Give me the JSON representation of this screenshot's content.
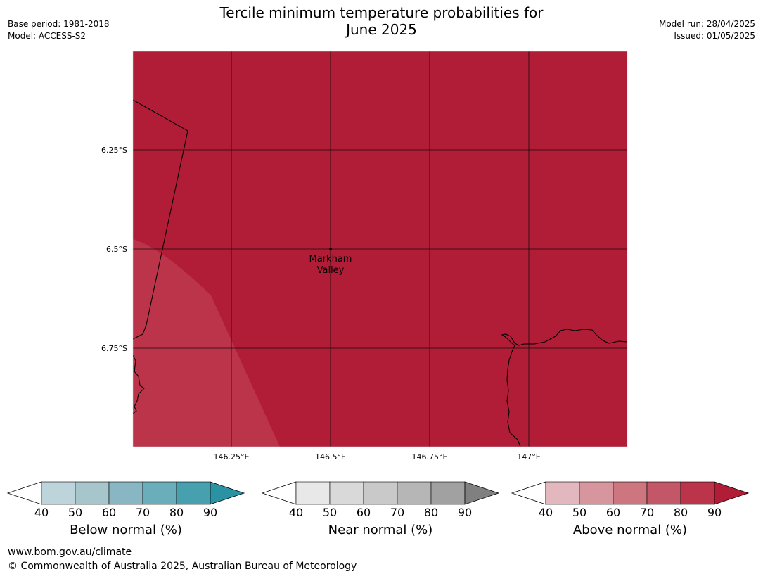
{
  "title_line1": "Tercile minimum temperature probabilities for",
  "title_line2": "June 2025",
  "meta_left": {
    "base_period": "Base period: 1981-2018",
    "model": "Model: ACCESS-S2"
  },
  "meta_right": {
    "model_run": "Model run: 28/04/2025",
    "issued": "Issued: 01/05/2025"
  },
  "map": {
    "fill_color": "#b11d37",
    "lower_prob_fill": "#bb3449",
    "lat_labels": [
      "6.25°S",
      "6.5°S",
      "6.75°S"
    ],
    "lon_labels": [
      "146.25°E",
      "146.5°E",
      "146.75°E",
      "147°E"
    ],
    "place_name_line1": "Markham",
    "place_name_line2": "Valley"
  },
  "colorbars": [
    {
      "title": "Below normal (%)",
      "ticks": [
        "40",
        "50",
        "60",
        "70",
        "80",
        "90"
      ],
      "colors": [
        "#bdd4da",
        "#a6c6cc",
        "#88b6c2",
        "#6aaebb",
        "#46a0ae"
      ],
      "extend_color": "#2a92a2"
    },
    {
      "title": "Near normal (%)",
      "ticks": [
        "40",
        "50",
        "60",
        "70",
        "80",
        "90"
      ],
      "colors": [
        "#e8e8e8",
        "#d9d9d9",
        "#c9c9c9",
        "#b6b6b6",
        "#a1a1a1"
      ],
      "extend_color": "#808080"
    },
    {
      "title": "Above normal (%)",
      "ticks": [
        "40",
        "50",
        "60",
        "70",
        "80",
        "90"
      ],
      "colors": [
        "#e2b8be",
        "#d7969e",
        "#cd7680",
        "#c35767",
        "#bb3449"
      ],
      "extend_color": "#b11d37"
    }
  ],
  "footer": {
    "url": "www.bom.gov.au/climate",
    "copyright": "© Commonwealth of Australia 2025, Australian Bureau of Meteorology"
  }
}
